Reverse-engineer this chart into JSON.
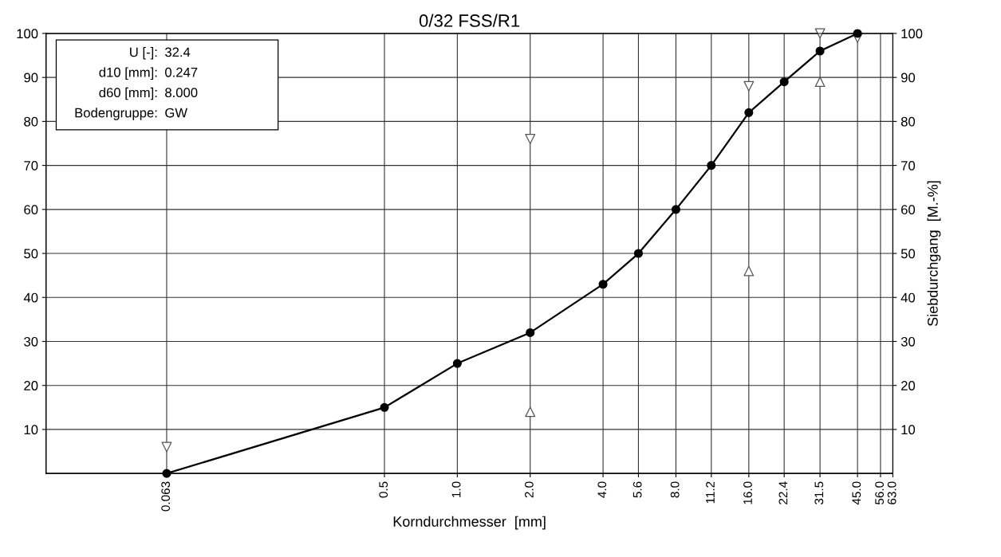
{
  "chart_data": {
    "type": "line",
    "title": "0/32 FSS/R1",
    "xlabel": "Korndurchmesser  [mm]",
    "y2label": "Siebdurchgang  [M.-%]",
    "log": "x",
    "xlim": [
      0.02,
      63
    ],
    "xticks": [
      {
        "value": 0.063,
        "label": "0.063"
      },
      {
        "value": 0.5,
        "label": "0.5"
      },
      {
        "value": 1.0,
        "label": "1.0"
      },
      {
        "value": 2.0,
        "label": "2.0"
      },
      {
        "value": 4.0,
        "label": "4.0"
      },
      {
        "value": 5.6,
        "label": "5.6"
      },
      {
        "value": 8.0,
        "label": "8.0"
      },
      {
        "value": 11.2,
        "label": "11.2"
      },
      {
        "value": 16.0,
        "label": "16.0"
      },
      {
        "value": 22.4,
        "label": "22.4"
      },
      {
        "value": 31.5,
        "label": "31.5"
      },
      {
        "value": 45.0,
        "label": "45.0"
      },
      {
        "value": 56.0,
        "label": "56.0"
      },
      {
        "value": 63.0,
        "label": "63.0"
      }
    ],
    "ylim": [
      0,
      100
    ],
    "yticks": [
      10,
      20,
      30,
      40,
      50,
      60,
      70,
      80,
      90,
      100
    ],
    "y2lim": [
      0,
      100
    ],
    "y2ticks": [
      10,
      20,
      30,
      40,
      50,
      60,
      70,
      80,
      90,
      100
    ],
    "grid": true,
    "line_style": "solid",
    "marker": "circle",
    "series": [
      {
        "color": "#000000",
        "x": [
          0.063,
          0.5,
          1.0,
          2.0,
          4.0,
          5.6,
          8.0,
          11.2,
          16.0,
          22.4,
          31.5,
          45.0
        ],
        "values": [
          0,
          15,
          25,
          32,
          43,
          50,
          60,
          70,
          82,
          89,
          96,
          100
        ]
      },
      {
        "type": "scatter",
        "marker": "triangle_down",
        "color": "#555555",
        "x": [
          0.063,
          2.0,
          16.0,
          31.5,
          45.0
        ],
        "values": [
          6,
          76,
          88,
          100,
          99
        ]
      },
      {
        "type": "scatter",
        "marker": "triangle",
        "color": "#555555",
        "x": [
          2.0,
          16.0,
          31.5
        ],
        "values": [
          14,
          46,
          89
        ]
      }
    ],
    "annotations": [
      "U [-]: 32.4",
      "d10 [mm]: 0.247",
      "d60 [mm]: 8.000",
      "Bodengruppe: GW"
    ]
  }
}
